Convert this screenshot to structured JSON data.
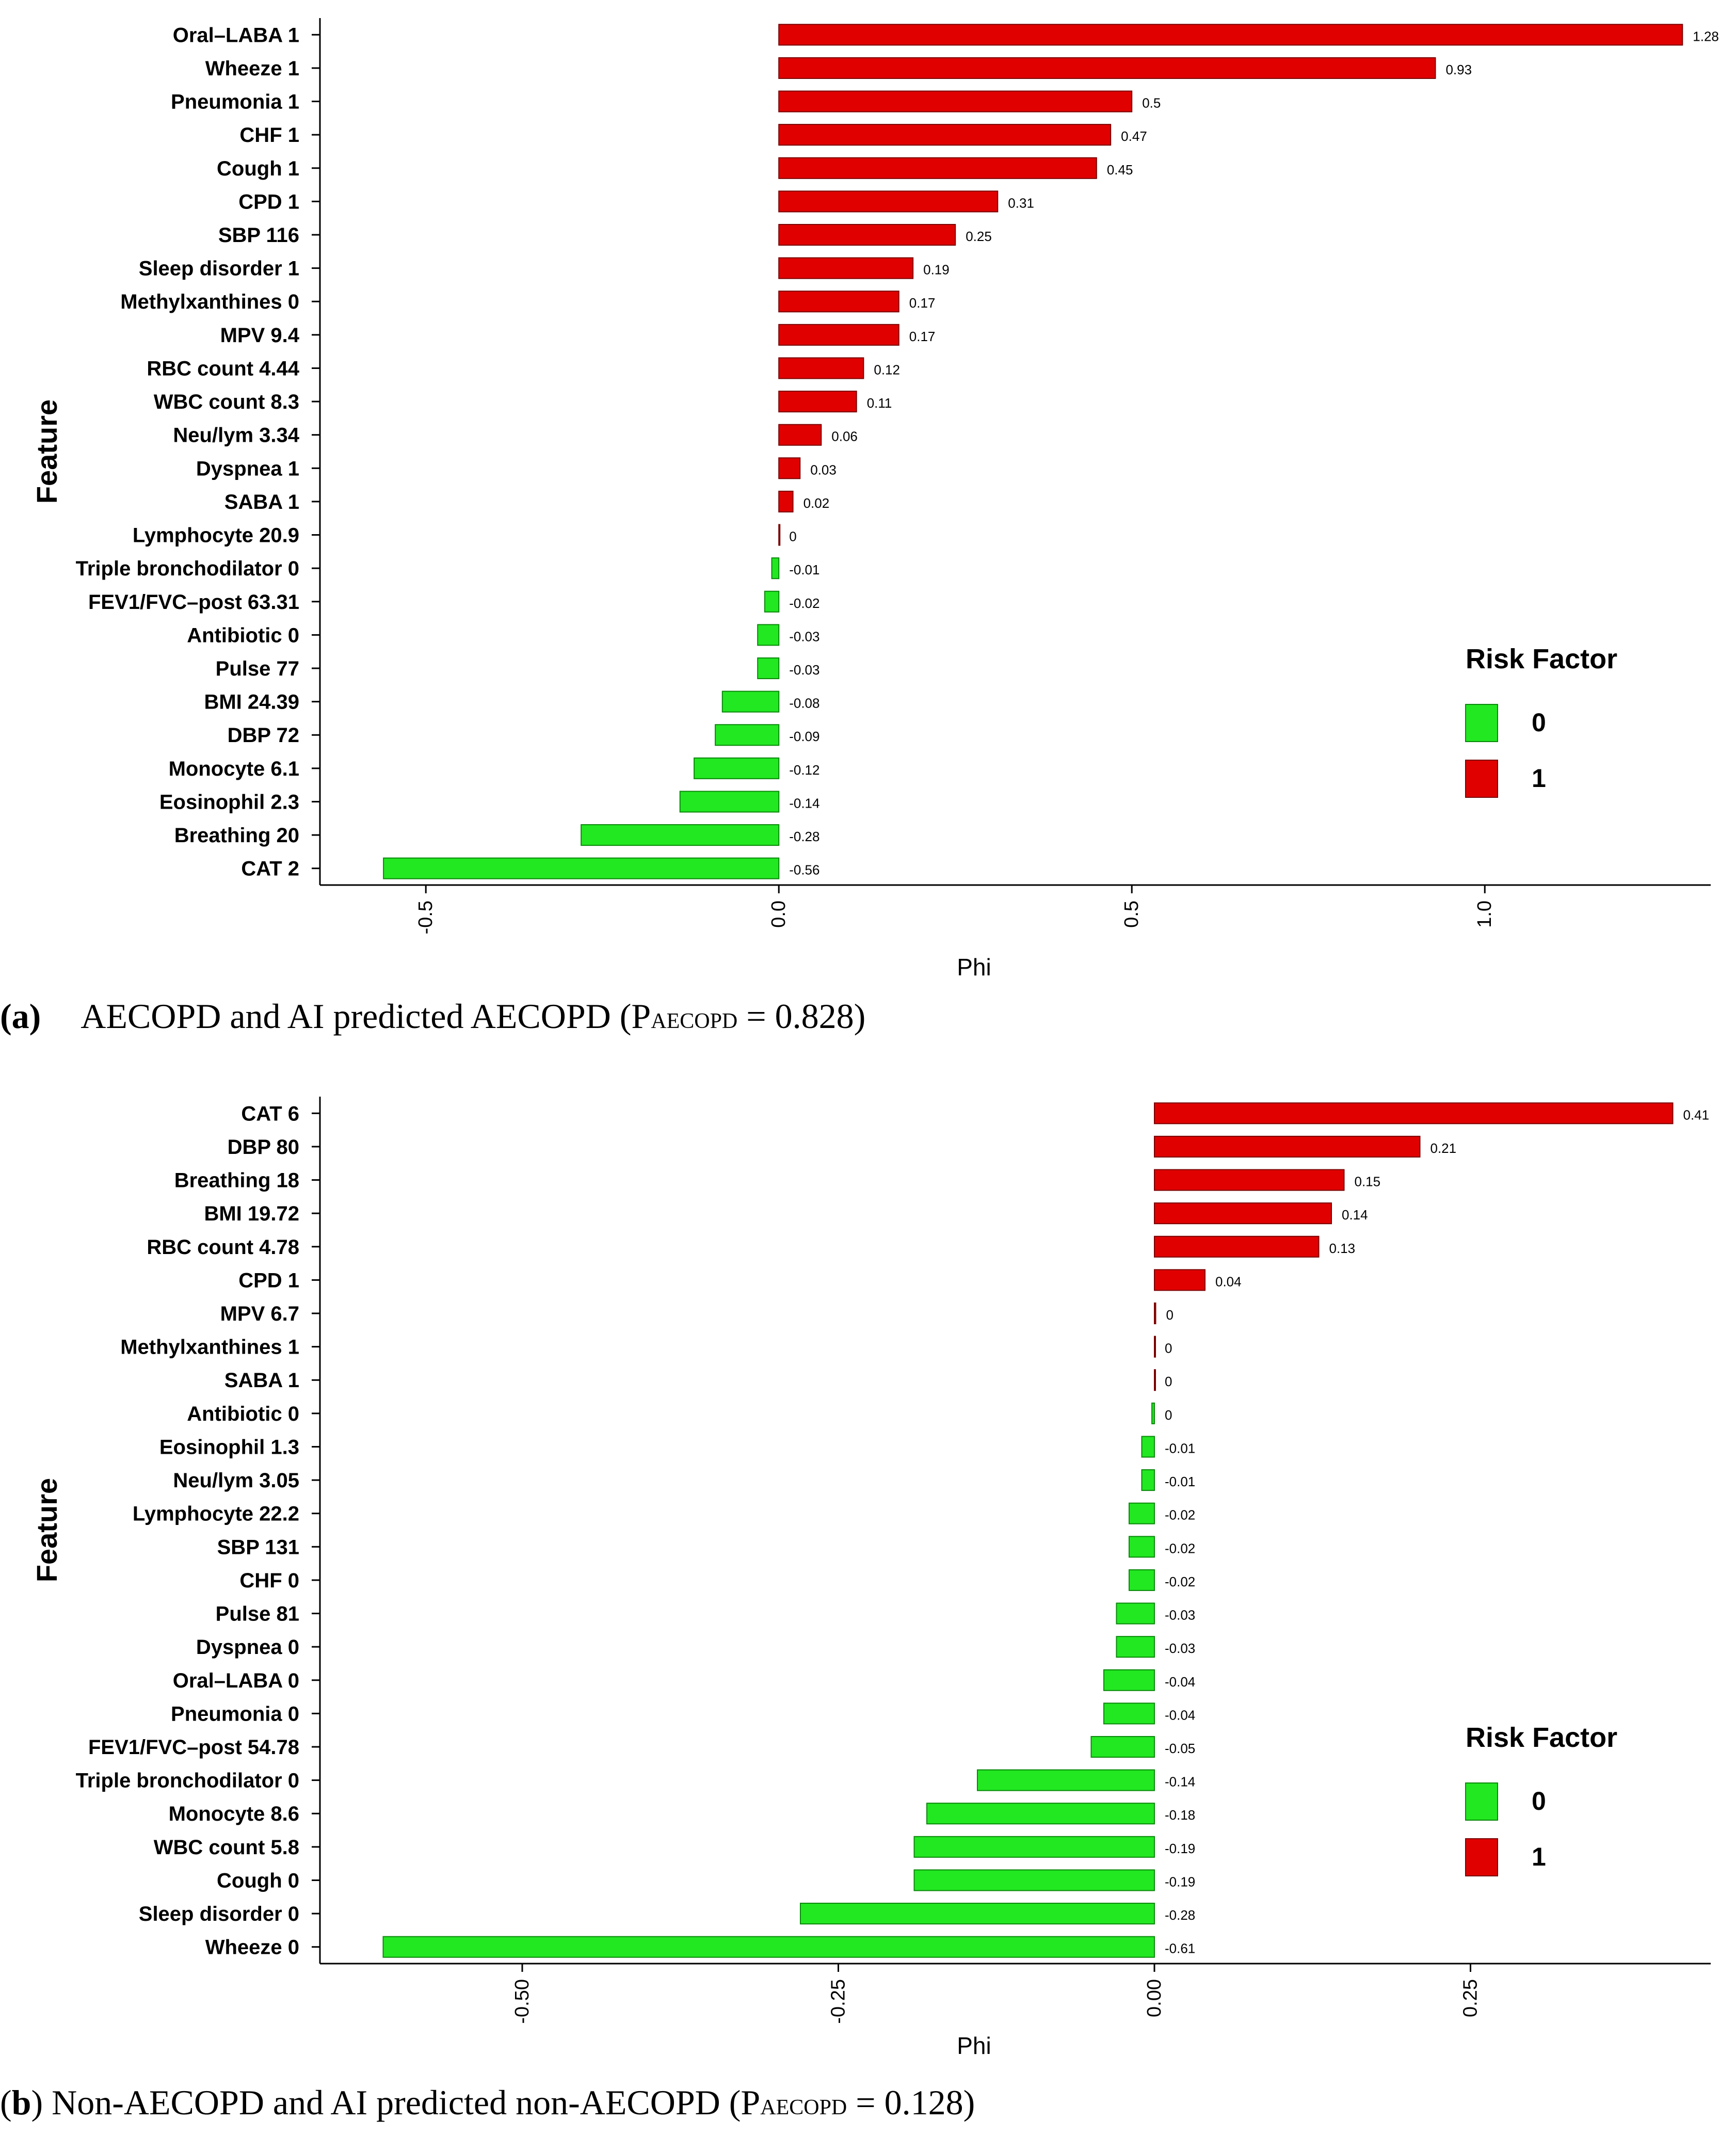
{
  "colors": {
    "risk_1": "#e10000",
    "risk_0": "#22e822",
    "bar_edge": "#7a0000",
    "bar_edge_green": "#0a8a0a"
  },
  "charts": [
    {
      "caption": {
        "label": "(a)",
        "text": "AECOPD and AI predicted AECOPD (P",
        "sub": "AECOPD",
        "tail": " = 0.828)"
      },
      "chart_data": {
        "type": "bar",
        "orientation": "horizontal",
        "xlabel": "Phi",
        "ylabel": "Feature",
        "xlim": [
          -0.65,
          1.32
        ],
        "xticks": [
          -0.5,
          0.0,
          0.5,
          1.0
        ],
        "xtick_labels": [
          "-0.5",
          "0.0",
          "0.5",
          "1.0"
        ],
        "legend": {
          "title": "Risk Factor",
          "entries": [
            "0",
            "1"
          ],
          "placement": "bottom-right"
        },
        "categories": [
          "Oral–LABA 1",
          "Wheeze 1",
          "Pneumonia 1",
          "CHF 1",
          "Cough 1",
          "CPD 1",
          "SBP 116",
          "Sleep disorder 1",
          "Methylxanthines 0",
          "MPV 9.4",
          "RBC count 4.44",
          "WBC count 8.3",
          "Neu/lym 3.34",
          "Dyspnea 1",
          "SABA 1",
          "Lymphocyte 20.9",
          "Triple bronchodilator 0",
          "FEV1/FVC–post 63.31",
          "Antibiotic 0",
          "Pulse 77",
          "BMI 24.39",
          "DBP 72",
          "Monocyte 6.1",
          "Eosinophil 2.3",
          "Breathing 20",
          "CAT 2"
        ],
        "values": [
          1.28,
          0.93,
          0.5,
          0.47,
          0.45,
          0.31,
          0.25,
          0.19,
          0.17,
          0.17,
          0.12,
          0.11,
          0.06,
          0.03,
          0.02,
          0,
          -0.01,
          -0.02,
          -0.03,
          -0.03,
          -0.08,
          -0.09,
          -0.12,
          -0.14,
          -0.28,
          -0.56
        ],
        "value_labels": [
          "1.28",
          "0.93",
          "0.5",
          "0.47",
          "0.45",
          "0.31",
          "0.25",
          "0.19",
          "0.17",
          "0.17",
          "0.12",
          "0.11",
          "0.06",
          "0.03",
          "0.02",
          "0",
          "-0.01",
          "-0.02",
          "-0.03",
          "-0.03",
          "-0.08",
          "-0.09",
          "-0.12",
          "-0.14",
          "-0.28",
          "-0.56"
        ],
        "risk": [
          1,
          1,
          1,
          1,
          1,
          1,
          1,
          1,
          1,
          1,
          1,
          1,
          1,
          1,
          1,
          1,
          0,
          0,
          0,
          0,
          0,
          0,
          0,
          0,
          0,
          0
        ]
      }
    },
    {
      "caption": {
        "label": "(b)",
        "text": " Non-AECOPD and AI predicted non-AECOPD (P",
        "sub": "AECOPD",
        "tail": " = 0.128)"
      },
      "chart_data": {
        "type": "bar",
        "orientation": "horizontal",
        "xlabel": "Phi",
        "ylabel": "Feature",
        "xlim": [
          -0.66,
          0.44
        ],
        "xticks": [
          -0.5,
          -0.25,
          0.0,
          0.25
        ],
        "xtick_labels": [
          "-0.50",
          "-0.25",
          "0.00",
          "0.25"
        ],
        "legend": {
          "title": "Risk Factor",
          "entries": [
            "0",
            "1"
          ],
          "placement": "bottom-right"
        },
        "categories": [
          "CAT 6",
          "DBP 80",
          "Breathing 18",
          "BMI 19.72",
          "RBC count 4.78",
          "CPD 1",
          "MPV 6.7",
          "Methylxanthines 1",
          "SABA 1",
          "Antibiotic 0",
          "Eosinophil 1.3",
          "Neu/lym 3.05",
          "Lymphocyte 22.2",
          "SBP 131",
          "CHF 0",
          "Pulse 81",
          "Dyspnea 0",
          "Oral–LABA 0",
          "Pneumonia 0",
          "FEV1/FVC–post 54.78",
          "Triple bronchodilator 0",
          "Monocyte 8.6",
          "WBC count 5.8",
          "Cough 0",
          "Sleep disorder 0",
          "Wheeze 0"
        ],
        "values": [
          0.41,
          0.21,
          0.15,
          0.14,
          0.13,
          0.04,
          0.001,
          0,
          0,
          -0.002,
          -0.01,
          -0.01,
          -0.02,
          -0.02,
          -0.02,
          -0.03,
          -0.03,
          -0.04,
          -0.04,
          -0.05,
          -0.14,
          -0.18,
          -0.19,
          -0.19,
          -0.28,
          -0.61
        ],
        "value_labels": [
          "0.41",
          "0.21",
          "0.15",
          "0.14",
          "0.13",
          "0.04",
          "0",
          "0",
          "0",
          "0",
          "-0.01",
          "-0.01",
          "-0.02",
          "-0.02",
          "-0.02",
          "-0.03",
          "-0.03",
          "-0.04",
          "-0.04",
          "-0.05",
          "-0.14",
          "-0.18",
          "-0.19",
          "-0.19",
          "-0.28",
          "-0.61"
        ],
        "risk": [
          1,
          1,
          1,
          1,
          1,
          1,
          1,
          1,
          1,
          0,
          0,
          0,
          0,
          0,
          0,
          0,
          0,
          0,
          0,
          0,
          0,
          0,
          0,
          0,
          0,
          0
        ]
      }
    }
  ]
}
